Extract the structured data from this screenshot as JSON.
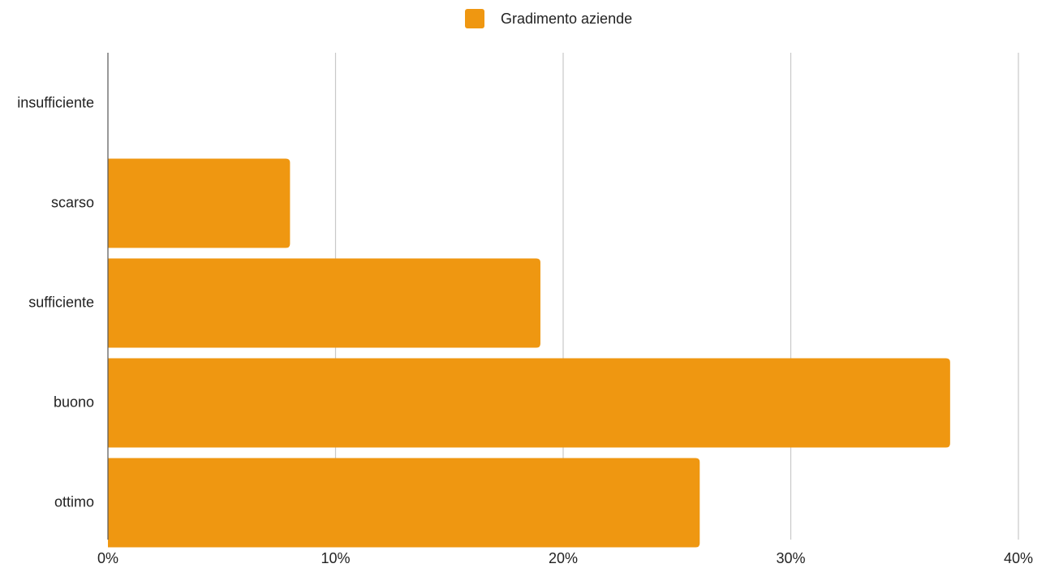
{
  "chart_data": {
    "type": "bar",
    "orientation": "horizontal",
    "categories": [
      "insufficiente",
      "scarso",
      "sufficiente",
      "buono",
      "ottimo"
    ],
    "series": [
      {
        "name": "Gradimento aziende",
        "values": [
          0,
          8,
          19,
          37,
          26
        ],
        "color": "#ef9711"
      }
    ],
    "xlim": [
      0,
      40
    ],
    "xticks": [
      "0%",
      "10%",
      "20%",
      "30%",
      "40%"
    ],
    "title": "",
    "xlabel": "",
    "ylabel": "",
    "grid": true,
    "legend_position": "top-center"
  }
}
